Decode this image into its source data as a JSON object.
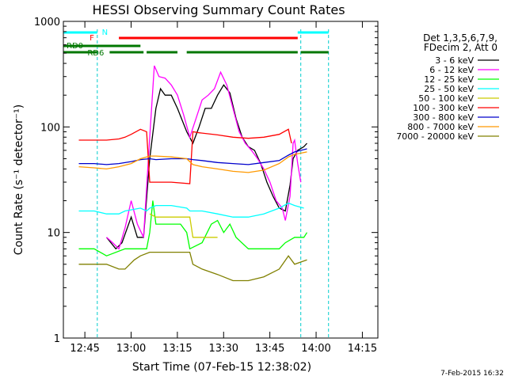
{
  "chart_data": {
    "type": "line",
    "title": "HESSI Observing Summary Count Rates",
    "xlabel": "Start Time (07-Feb-15 12:38:02)",
    "ylabel": "Count Rate (s⁻¹ detector⁻¹)",
    "yscale": "log",
    "ylim": [
      1,
      1000
    ],
    "xlim_minutes_after_start": [
      0,
      102
    ],
    "x_ticks": [
      "12:45",
      "13:00",
      "13:15",
      "13:30",
      "13:45",
      "14:00",
      "14:15"
    ],
    "x_tick_minutes": [
      6.97,
      21.97,
      36.97,
      51.97,
      66.97,
      81.97,
      96.97
    ],
    "y_ticks": [
      "1",
      "10",
      "100",
      "1000"
    ],
    "y_tick_values": [
      1,
      10,
      100,
      1000
    ],
    "legend": {
      "header": [
        "Det 1,3,5,6,7,9,",
        "FDecim 2, Att 0"
      ],
      "placement": "right"
    },
    "series": [
      {
        "name": "3 - 6 keV",
        "color": "#000000",
        "points": [
          [
            14,
            9
          ],
          [
            17,
            7
          ],
          [
            19,
            8
          ],
          [
            22,
            14
          ],
          [
            24,
            9
          ],
          [
            26,
            9
          ],
          [
            28,
            50
          ],
          [
            30,
            150
          ],
          [
            31.5,
            230
          ],
          [
            33,
            200
          ],
          [
            35,
            200
          ],
          [
            37,
            150
          ],
          [
            40,
            90
          ],
          [
            42,
            70
          ],
          [
            44,
            100
          ],
          [
            46,
            150
          ],
          [
            48,
            150
          ],
          [
            50,
            200
          ],
          [
            52,
            250
          ],
          [
            54,
            210
          ],
          [
            56,
            120
          ],
          [
            58,
            80
          ],
          [
            60,
            65
          ],
          [
            62,
            60
          ],
          [
            64,
            45
          ],
          [
            66,
            30
          ],
          [
            68,
            22
          ],
          [
            70,
            17
          ],
          [
            72,
            16
          ],
          [
            73.5,
            28
          ],
          [
            74.5,
            50
          ],
          [
            76,
            60
          ],
          [
            78,
            65
          ],
          [
            79,
            70
          ]
        ]
      },
      {
        "name": "6 - 12 keV",
        "color": "#ff00ff",
        "points": [
          [
            14,
            9
          ],
          [
            16,
            8
          ],
          [
            18,
            7
          ],
          [
            20,
            11
          ],
          [
            22,
            20
          ],
          [
            24,
            12
          ],
          [
            26,
            9
          ],
          [
            28,
            80
          ],
          [
            29.5,
            380
          ],
          [
            31,
            300
          ],
          [
            33,
            290
          ],
          [
            35,
            250
          ],
          [
            37,
            200
          ],
          [
            39,
            130
          ],
          [
            41,
            80
          ],
          [
            43,
            120
          ],
          [
            45,
            180
          ],
          [
            47,
            200
          ],
          [
            49,
            230
          ],
          [
            51,
            330
          ],
          [
            53,
            250
          ],
          [
            55,
            150
          ],
          [
            57,
            90
          ],
          [
            59,
            70
          ],
          [
            61,
            60
          ],
          [
            63,
            50
          ],
          [
            65,
            40
          ],
          [
            67,
            30
          ],
          [
            69,
            20
          ],
          [
            71,
            17
          ],
          [
            72,
            13
          ],
          [
            73.5,
            22
          ],
          [
            74.5,
            70
          ],
          [
            75,
            75
          ],
          [
            76,
            45
          ],
          [
            77,
            30
          ]
        ]
      },
      {
        "name": "12 - 25 keV",
        "color": "#00ff00",
        "points": [
          [
            5,
            7
          ],
          [
            10,
            7
          ],
          [
            14,
            6
          ],
          [
            20,
            7
          ],
          [
            25,
            7
          ],
          [
            27,
            7
          ],
          [
            28,
            10
          ],
          [
            29,
            20
          ],
          [
            30,
            12
          ],
          [
            35,
            12
          ],
          [
            38,
            12
          ],
          [
            40,
            10
          ],
          [
            41,
            7
          ],
          [
            45,
            8
          ],
          [
            48,
            12
          ],
          [
            50,
            13
          ],
          [
            52,
            10
          ],
          [
            54,
            12
          ],
          [
            56,
            9
          ],
          [
            60,
            7
          ],
          [
            65,
            7
          ],
          [
            70,
            7
          ],
          [
            72,
            8
          ],
          [
            75,
            9
          ],
          [
            78,
            9
          ],
          [
            79,
            10
          ]
        ]
      },
      {
        "name": "25 - 50 keV",
        "color": "#00ffff",
        "points": [
          [
            5,
            16
          ],
          [
            10,
            16
          ],
          [
            14,
            15
          ],
          [
            18,
            15
          ],
          [
            20,
            16
          ],
          [
            25,
            17
          ],
          [
            27,
            16
          ],
          [
            28,
            17
          ],
          [
            30,
            18
          ],
          [
            35,
            18
          ],
          [
            40,
            17
          ],
          [
            41,
            16
          ],
          [
            45,
            16
          ],
          [
            50,
            15
          ],
          [
            55,
            14
          ],
          [
            60,
            14
          ],
          [
            65,
            15
          ],
          [
            70,
            17
          ],
          [
            73,
            19
          ],
          [
            75,
            18
          ],
          [
            78,
            17
          ]
        ]
      },
      {
        "name": "50 - 100 keV",
        "color": "#cccc00",
        "points": [
          [
            28,
            15
          ],
          [
            30,
            14
          ],
          [
            35,
            14
          ],
          [
            41,
            14
          ],
          [
            42,
            9
          ],
          [
            45,
            9
          ],
          [
            50,
            9
          ]
        ]
      },
      {
        "name": "100 - 300 keV",
        "color": "#ff0000",
        "points": [
          [
            5,
            75
          ],
          [
            10,
            75
          ],
          [
            14,
            75
          ],
          [
            18,
            77
          ],
          [
            20,
            80
          ],
          [
            22,
            85
          ],
          [
            25,
            95
          ],
          [
            27,
            90
          ],
          [
            28,
            30
          ],
          [
            30,
            30
          ],
          [
            35,
            30
          ],
          [
            41,
            29
          ],
          [
            42,
            90
          ],
          [
            44,
            88
          ],
          [
            50,
            84
          ],
          [
            55,
            80
          ],
          [
            60,
            78
          ],
          [
            65,
            80
          ],
          [
            70,
            85
          ],
          [
            73,
            95
          ],
          [
            74,
            70
          ]
        ]
      },
      {
        "name": "300 - 800 keV",
        "color": "#0000cc",
        "points": [
          [
            5,
            45
          ],
          [
            10,
            45
          ],
          [
            14,
            44
          ],
          [
            18,
            45
          ],
          [
            22,
            47
          ],
          [
            25,
            49
          ],
          [
            28,
            50
          ],
          [
            30,
            49
          ],
          [
            35,
            50
          ],
          [
            40,
            50
          ],
          [
            42,
            49
          ],
          [
            45,
            48
          ],
          [
            50,
            46
          ],
          [
            55,
            45
          ],
          [
            60,
            44
          ],
          [
            65,
            46
          ],
          [
            70,
            48
          ],
          [
            73,
            54
          ],
          [
            75,
            58
          ],
          [
            79,
            62
          ]
        ]
      },
      {
        "name": "800 - 7000 keV",
        "color": "#ff9900",
        "points": [
          [
            5,
            42
          ],
          [
            10,
            41
          ],
          [
            14,
            40
          ],
          [
            18,
            42
          ],
          [
            22,
            45
          ],
          [
            25,
            50
          ],
          [
            28,
            53
          ],
          [
            30,
            53
          ],
          [
            35,
            52
          ],
          [
            40,
            50
          ],
          [
            42,
            44
          ],
          [
            45,
            42
          ],
          [
            50,
            40
          ],
          [
            55,
            38
          ],
          [
            60,
            37
          ],
          [
            65,
            39
          ],
          [
            70,
            45
          ],
          [
            73,
            52
          ],
          [
            75,
            55
          ],
          [
            79,
            58
          ]
        ]
      },
      {
        "name": "7000 - 20000 keV",
        "color": "#808000",
        "points": [
          [
            5,
            5
          ],
          [
            10,
            5
          ],
          [
            14,
            5
          ],
          [
            18,
            4.5
          ],
          [
            20,
            4.5
          ],
          [
            23,
            5.5
          ],
          [
            25,
            6
          ],
          [
            28,
            6.5
          ],
          [
            30,
            6.5
          ],
          [
            35,
            6.5
          ],
          [
            41,
            6.5
          ],
          [
            42,
            5
          ],
          [
            45,
            4.5
          ],
          [
            50,
            4
          ],
          [
            55,
            3.5
          ],
          [
            60,
            3.5
          ],
          [
            65,
            3.8
          ],
          [
            70,
            4.5
          ],
          [
            73,
            6
          ],
          [
            75,
            5
          ],
          [
            79,
            5.5
          ]
        ]
      }
    ],
    "flag_bars": [
      {
        "label": "N",
        "color": "#00ffff",
        "segments": [
          [
            0,
            11
          ],
          [
            76,
            86
          ]
        ]
      },
      {
        "label": "F",
        "color": "#ff0000",
        "segments": [
          [
            18,
            76
          ]
        ]
      },
      {
        "label": "RD0",
        "color": "#007700",
        "segments": [
          [
            0,
            25
          ]
        ]
      },
      {
        "label": "RD6",
        "color": "#007700",
        "segments": [
          [
            0,
            11
          ],
          [
            15,
            26
          ],
          [
            27,
            37
          ],
          [
            40,
            76
          ],
          [
            77,
            86
          ]
        ]
      }
    ],
    "legend_colors": {
      "axis": "#000000",
      "gridline_dashed": "#00cccc"
    },
    "footer_date": "7-Feb-2015 16:32"
  }
}
